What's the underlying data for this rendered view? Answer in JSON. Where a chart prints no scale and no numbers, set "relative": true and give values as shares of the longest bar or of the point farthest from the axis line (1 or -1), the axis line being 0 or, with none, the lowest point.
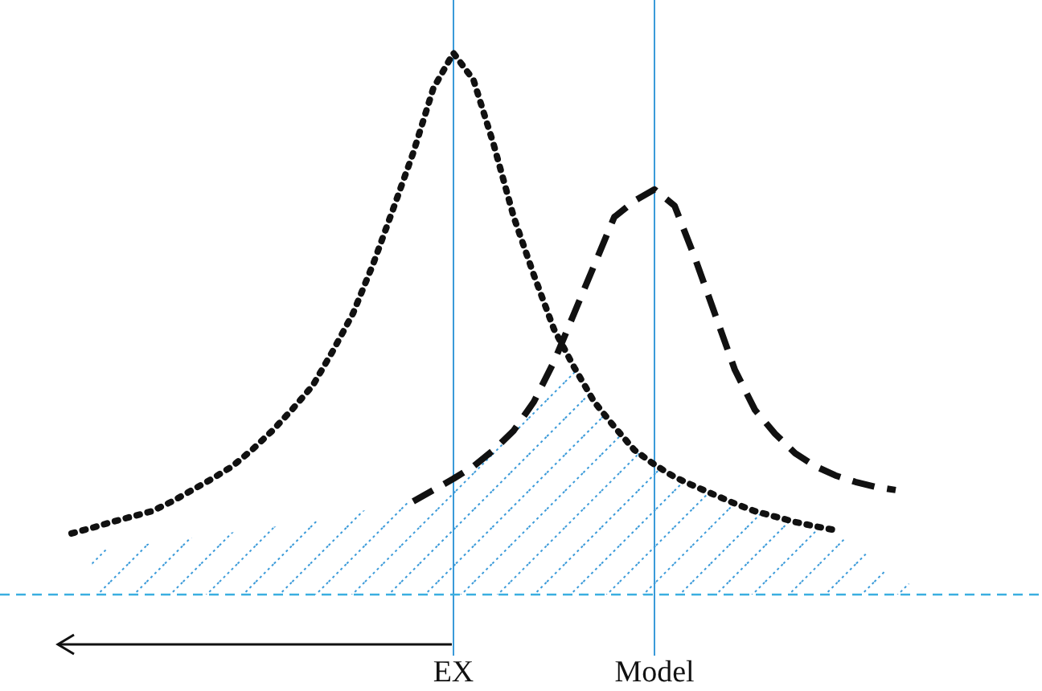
{
  "chart_data": {
    "type": "line",
    "relative": true,
    "categories": [
      null,
      null,
      null,
      null,
      null,
      null,
      null,
      null,
      null,
      null,
      null,
      null,
      null,
      null,
      null,
      null,
      null,
      null,
      null,
      "EX",
      null,
      null,
      null,
      null,
      null,
      null,
      null,
      null,
      null,
      "Model",
      null,
      null,
      null,
      null,
      null,
      null,
      null,
      null,
      null,
      null,
      null,
      null,
      null,
      null
    ],
    "series": [
      {
        "type": "area",
        "color": "#3a9ad9",
        "values": [
          null,
          0.08,
          0.085,
          0.09,
          0.095,
          0.1,
          0.105,
          0.11,
          0.115,
          0.12,
          0.125,
          0.13,
          0.135,
          0.14,
          0.15,
          0.16,
          0.165,
          0.172,
          0.193,
          0.214,
          0.237,
          0.267,
          0.303,
          0.356,
          0.43,
          0.42,
          0.356,
          0.31,
          0.267,
          0.24,
          0.217,
          0.2,
          0.184,
          0.168,
          0.154,
          0.144,
          0.134,
          0.126,
          0.119,
          0.09,
          0.06,
          0.03,
          0.015,
          0
        ]
      },
      {
        "color": "#111111",
        "line_style": "dotted",
        "values": [
          0.113,
          0.123,
          0.134,
          0.144,
          0.154,
          0.172,
          0.193,
          0.214,
          0.237,
          0.268,
          0.303,
          0.343,
          0.386,
          0.45,
          0.519,
          0.61,
          0.712,
          0.816,
          0.935,
          1,
          0.95,
          0.831,
          0.697,
          0.59,
          0.49,
          0.42,
          0.356,
          0.31,
          0.267,
          0.24,
          0.217,
          0.2,
          0.184,
          0.168,
          0.154,
          0.144,
          0.134,
          0.126,
          0.119,
          null,
          null,
          null,
          null,
          null
        ]
      },
      {
        "color": "#111111",
        "line_style": "dashed",
        "values": [
          null,
          null,
          null,
          null,
          null,
          null,
          null,
          null,
          null,
          null,
          null,
          null,
          null,
          null,
          null,
          null,
          null,
          0.172,
          0.193,
          0.214,
          0.237,
          0.267,
          0.303,
          0.356,
          0.43,
          0.519,
          0.608,
          0.697,
          0.727,
          0.748,
          0.718,
          0.623,
          0.519,
          0.415,
          0.341,
          0.297,
          0.261,
          0.237,
          0.22,
          0.208,
          0.199,
          0.193,
          null,
          null
        ]
      }
    ],
    "ref_lines": [
      {
        "axis": "x",
        "value": "EX",
        "color": "#3a9ad9"
      },
      {
        "axis": "x",
        "value": "Model",
        "color": "#3a9ad9"
      }
    ]
  }
}
